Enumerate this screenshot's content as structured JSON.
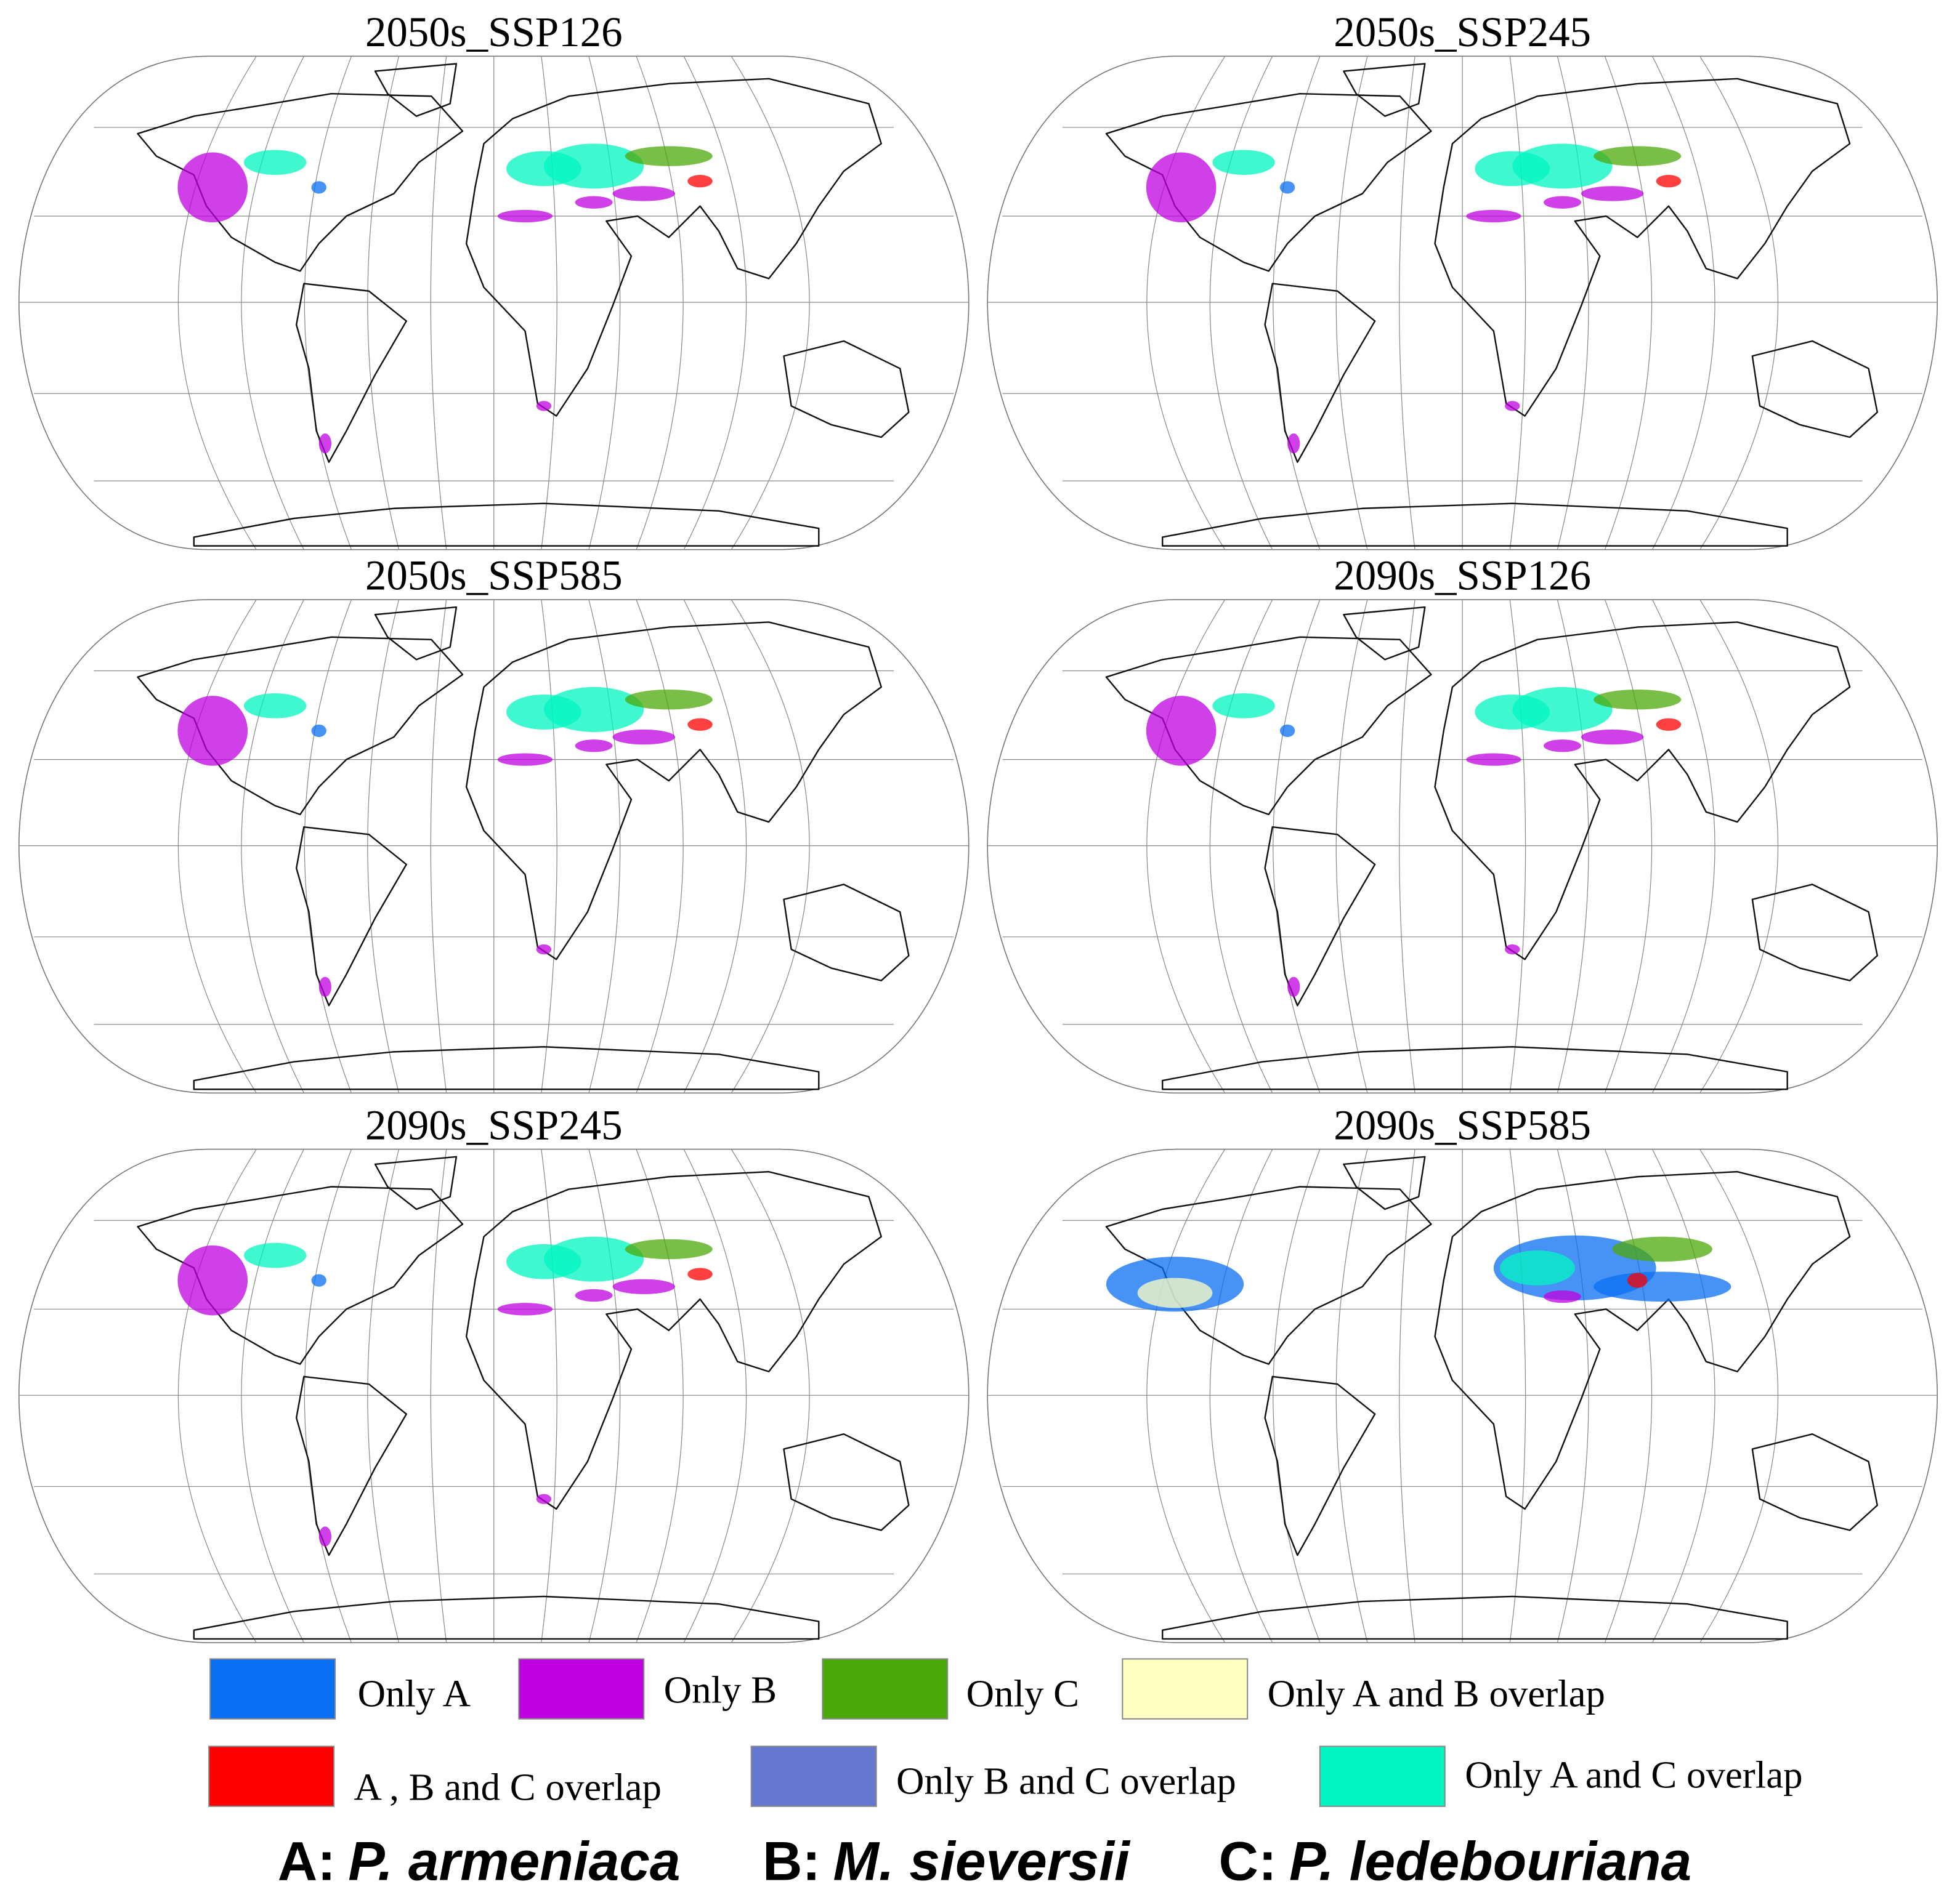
{
  "panels": [
    {
      "title": "2050s_SSP126"
    },
    {
      "title": "2050s_SSP245"
    },
    {
      "title": "2050s_SSP585"
    },
    {
      "title": "2090s_SSP126"
    },
    {
      "title": "2090s_SSP245"
    },
    {
      "title": "2090s_SSP585"
    }
  ],
  "legend": [
    {
      "label": "Only A",
      "color": "#0a6ff2"
    },
    {
      "label": "Only B",
      "color": "#c000e0"
    },
    {
      "label": "Only C",
      "color": "#4ca80a"
    },
    {
      "label": "Only A and B overlap",
      "color": "#ffffc2"
    },
    {
      "label": "A , B and C overlap",
      "color": "#ff0000"
    },
    {
      "label": "Only B and C overlap",
      "color": "#6677d0"
    },
    {
      "label": "Only A and C overlap",
      "color": "#00f5c0"
    }
  ],
  "species_key": [
    {
      "letter": "A:",
      "name": "P. armeniaca"
    },
    {
      "letter": "B:",
      "name": "M. sieversii"
    },
    {
      "letter": "C:",
      "name": "P. ledebouriana"
    }
  ]
}
